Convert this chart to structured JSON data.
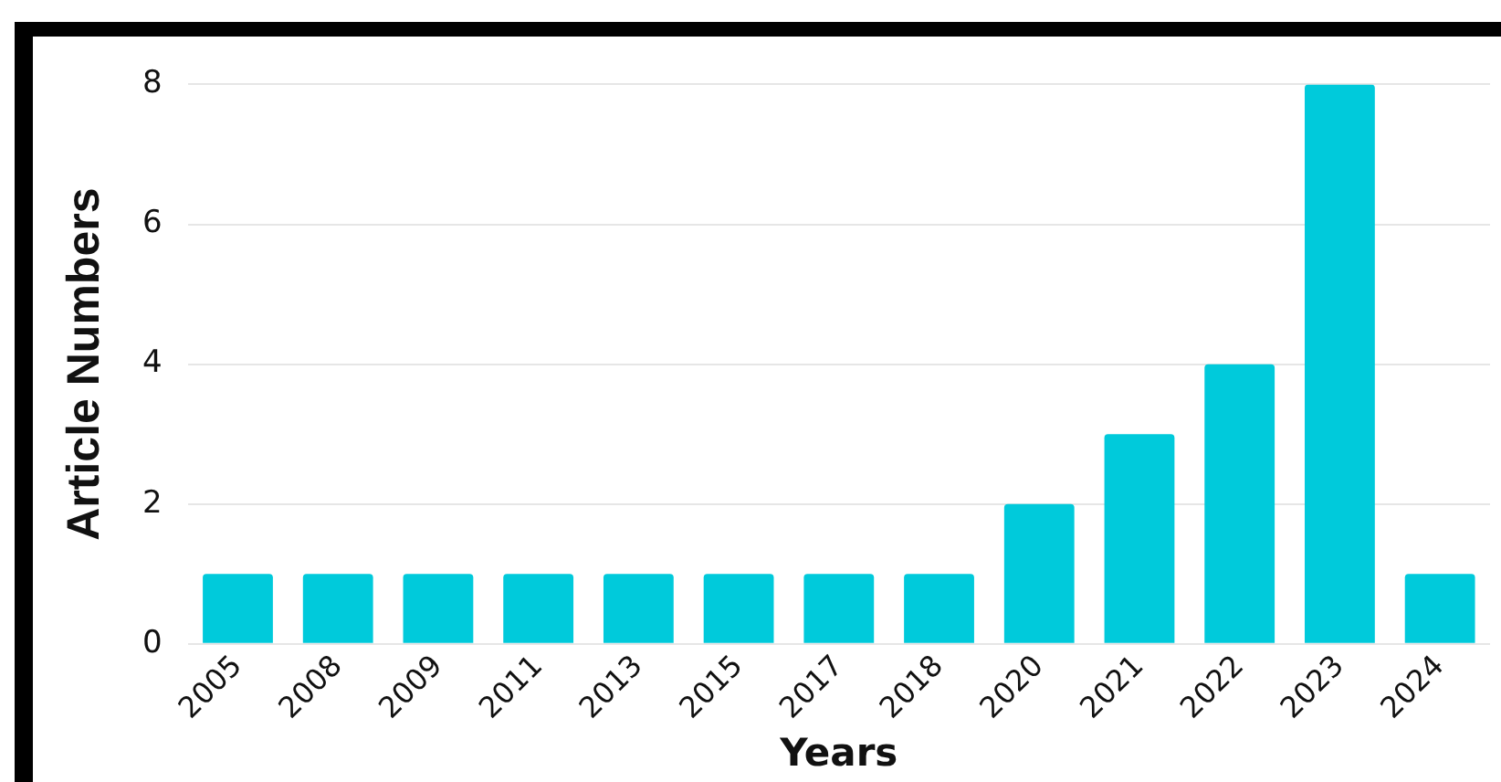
{
  "chart_data": {
    "type": "bar",
    "xlabel": "Years",
    "ylabel": "Article Numbers",
    "categories": [
      "2005",
      "2008",
      "2009",
      "2011",
      "2013",
      "2015",
      "2017",
      "2018",
      "2020",
      "2021",
      "2022",
      "2023",
      "2024"
    ],
    "values": [
      1,
      1,
      1,
      1,
      1,
      1,
      1,
      1,
      2,
      3,
      4,
      8,
      1
    ],
    "color": "#00cadb",
    "ylim": [
      0,
      8
    ],
    "yticks": [
      0,
      2,
      4,
      6,
      8
    ],
    "grid": "y",
    "legend": false
  }
}
